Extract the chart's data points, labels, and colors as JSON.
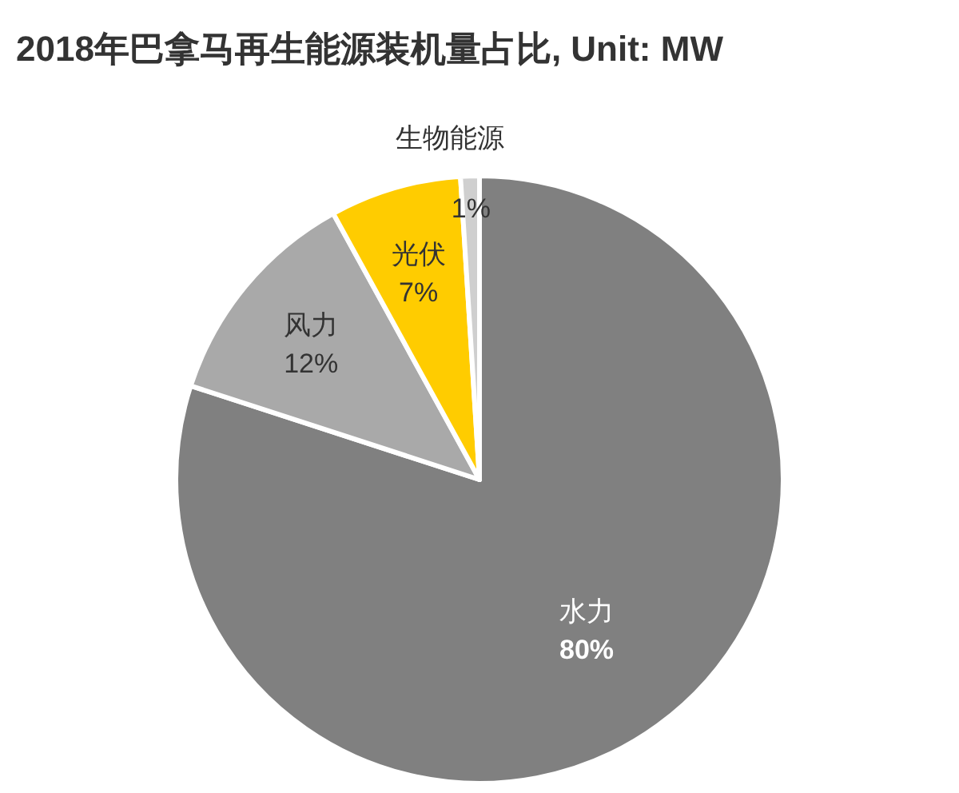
{
  "chart_data": {
    "type": "pie",
    "title": "2018年巴拿马再生能源装机量占比, Unit: MW",
    "categories": [
      "水力",
      "风力",
      "光伏",
      "生物能源"
    ],
    "values": [
      80,
      12,
      7,
      1
    ],
    "value_labels": [
      "80%",
      "12%",
      "7%",
      "1%"
    ],
    "colors": [
      "#808080",
      "#a9a9a9",
      "#ffcc00",
      "#cfcfcf"
    ]
  }
}
